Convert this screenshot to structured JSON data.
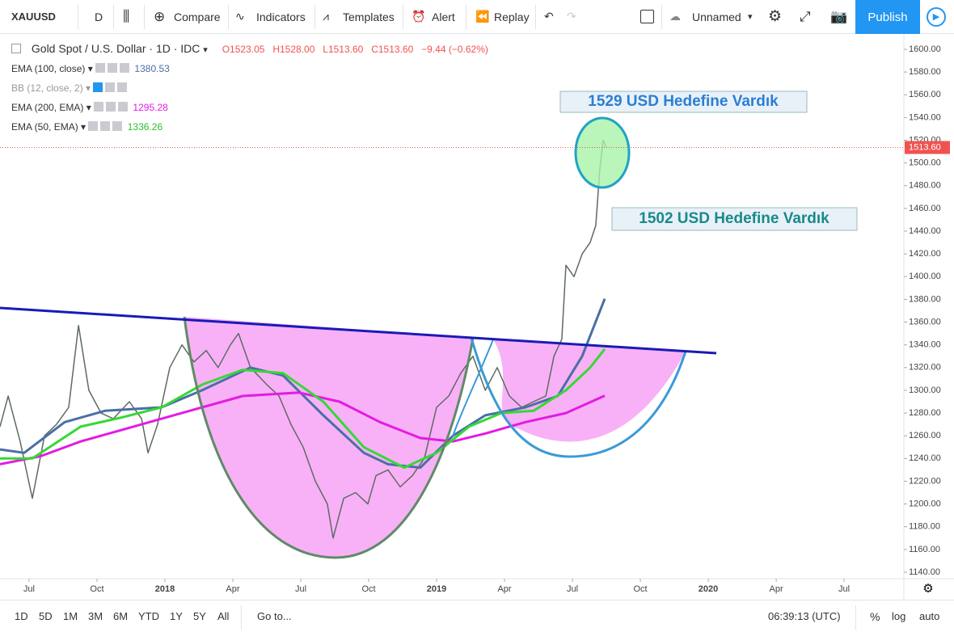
{
  "toolbar": {
    "symbol": "XAUUSD",
    "interval": "D",
    "compare": "Compare",
    "indicators": "Indicators",
    "templates": "Templates",
    "alert": "Alert",
    "replay": "Replay",
    "layout": "Unnamed",
    "publish": "Publish"
  },
  "chart_data": {
    "type": "line",
    "ohlc": [
      "O1523.05",
      "H1528.00",
      "L1513.60",
      "C1513.60"
    ],
    "change": "−9.44 (−0.62%)",
    "studies": [
      {
        "name": "BB (12, close, 2)"
      }
    ],
    "annotations": [
      "1529 USD Hedefine Vardık",
      "1502 USD Hedefine Vardık"
    ],
    "last_price": {
      "value": 1513.6,
      "label": "1513.60"
    },
    "xlim": [
      2017.393,
      2020.72
    ],
    "xticks": [
      {
        "value": 2017.5,
        "label": "Jul"
      },
      {
        "value": 2017.75,
        "label": "Oct"
      },
      2018,
      {
        "value": 2018.25,
        "label": "Apr"
      },
      {
        "value": 2018.5,
        "label": "Jul"
      },
      {
        "value": 2018.75,
        "label": "Oct"
      },
      2019,
      {
        "value": 2019.25,
        "label": "Apr"
      },
      {
        "value": 2019.5,
        "label": "Jul"
      },
      {
        "value": 2019.75,
        "label": "Oct"
      },
      2020,
      {
        "value": 2020.25,
        "label": "Apr"
      },
      {
        "value": 2020.5,
        "label": "Jul"
      }
    ],
    "ylim": [
      1134.3,
      1613.5
    ],
    "yticks": [
      {
        "value": 1140,
        "label": "1140.00"
      },
      {
        "value": 1160,
        "label": "1160.00"
      },
      {
        "value": 1180,
        "label": "1180.00"
      },
      {
        "value": 1200,
        "label": "1200.00"
      },
      {
        "value": 1220,
        "label": "1220.00"
      },
      {
        "value": 1240,
        "label": "1240.00"
      },
      {
        "value": 1260,
        "label": "1260.00"
      },
      {
        "value": 1280,
        "label": "1280.00"
      },
      {
        "value": 1300,
        "label": "1300.00"
      },
      {
        "value": 1320,
        "label": "1320.00"
      },
      {
        "value": 1340,
        "label": "1340.00"
      },
      {
        "value": 1360,
        "label": "1360.00"
      },
      {
        "value": 1380,
        "label": "1380.00"
      },
      {
        "value": 1400,
        "label": "1400.00"
      },
      {
        "value": 1420,
        "label": "1420.00"
      },
      {
        "value": 1440,
        "label": "1440.00"
      },
      {
        "value": 1460,
        "label": "1460.00"
      },
      {
        "value": 1480,
        "label": "1480.00"
      },
      {
        "value": 1500,
        "label": "1500.00"
      },
      {
        "value": 1520,
        "label": "1520.00"
      },
      {
        "value": 1540,
        "label": "1540.00"
      },
      {
        "value": 1560,
        "label": "1560.00"
      },
      {
        "value": 1580,
        "label": "1580.00"
      },
      {
        "value": 1600,
        "label": "1600.00"
      }
    ],
    "series": [
      {
        "name": "Gold Spot / U.S. Dollar · 1D · IDC",
        "color": "#5d6b63",
        "x": [
          2017.393,
          2017.423,
          2017.467,
          2017.512,
          2017.557,
          2017.601,
          2017.646,
          2017.682,
          2017.72,
          2017.765,
          2017.81,
          2017.869,
          2017.914,
          2017.938,
          2017.973,
          2018.018,
          2018.063,
          2018.107,
          2018.152,
          2018.196,
          2018.241,
          2018.271,
          2018.315,
          2018.375,
          2018.42,
          2018.464,
          2018.509,
          2018.554,
          2018.598,
          2018.619,
          2018.658,
          2018.702,
          2018.747,
          2018.777,
          2018.821,
          2018.866,
          2018.911,
          2018.955,
          2019.0,
          2019.045,
          2019.089,
          2019.134,
          2019.179,
          2019.223,
          2019.268,
          2019.313,
          2019.357,
          2019.402,
          2019.432,
          2019.461,
          2019.476,
          2019.506,
          2019.536,
          2019.565,
          2019.586,
          2019.601,
          2019.613,
          2019.625
        ],
        "values": [
          1268,
          1295,
          1255,
          1205,
          1260,
          1270,
          1285,
          1357,
          1300,
          1280,
          1275,
          1290,
          1275,
          1245,
          1270,
          1320,
          1340,
          1325,
          1335,
          1320,
          1340,
          1350,
          1320,
          1305,
          1295,
          1270,
          1250,
          1220,
          1200,
          1170,
          1205,
          1210,
          1200,
          1225,
          1230,
          1215,
          1225,
          1240,
          1285,
          1295,
          1315,
          1330,
          1300,
          1320,
          1295,
          1285,
          1290,
          1295,
          1330,
          1345,
          1410,
          1400,
          1420,
          1430,
          1445,
          1495,
          1520,
          1513.6
        ]
      },
      {
        "name": "EMA (100, close)",
        "legend_value": "1380.53",
        "color": "#4a6fa5",
        "x": [
          2017.393,
          2017.482,
          2017.631,
          2017.78,
          2017.988,
          2018.137,
          2018.315,
          2018.435,
          2018.583,
          2018.732,
          2018.821,
          2018.94,
          2019.06,
          2019.179,
          2019.327,
          2019.446,
          2019.536,
          2019.619
        ],
        "values": [
          1248,
          1245,
          1272,
          1282,
          1285,
          1300,
          1320,
          1313,
          1278,
          1245,
          1235,
          1232,
          1260,
          1278,
          1285,
          1295,
          1330,
          1380.53
        ]
      },
      {
        "name": "EMA (200, EMA)",
        "legend_value": "1295.28",
        "color": "#e31be3",
        "x": [
          2017.393,
          2017.542,
          2017.69,
          2017.839,
          2017.988,
          2018.137,
          2018.286,
          2018.494,
          2018.643,
          2018.792,
          2018.94,
          2019.06,
          2019.179,
          2019.327,
          2019.476,
          2019.619
        ],
        "values": [
          1235,
          1242,
          1255,
          1265,
          1275,
          1285,
          1295,
          1298,
          1290,
          1272,
          1258,
          1255,
          1262,
          1272,
          1280,
          1295.28
        ]
      },
      {
        "name": "EMA (50, EMA)",
        "legend_value": "1336.26",
        "color": "#35d835",
        "x": [
          2017.393,
          2017.512,
          2017.69,
          2017.839,
          2017.988,
          2018.137,
          2018.286,
          2018.435,
          2018.583,
          2018.732,
          2018.881,
          2019.0,
          2019.119,
          2019.238,
          2019.357,
          2019.476,
          2019.565,
          2019.619
        ],
        "values": [
          1240,
          1240,
          1268,
          1276,
          1285,
          1305,
          1318,
          1315,
          1290,
          1250,
          1232,
          1245,
          1268,
          1280,
          1282,
          1300,
          1320,
          1336.26
        ]
      }
    ]
  },
  "bottom_bar": {
    "ranges": [
      "1D",
      "5D",
      "1M",
      "3M",
      "6M",
      "YTD",
      "1Y",
      "5Y",
      "All"
    ],
    "goto": "Go to...",
    "clock": "06:39:13 (UTC)",
    "percent": "%",
    "log": "log",
    "auto": "auto"
  }
}
